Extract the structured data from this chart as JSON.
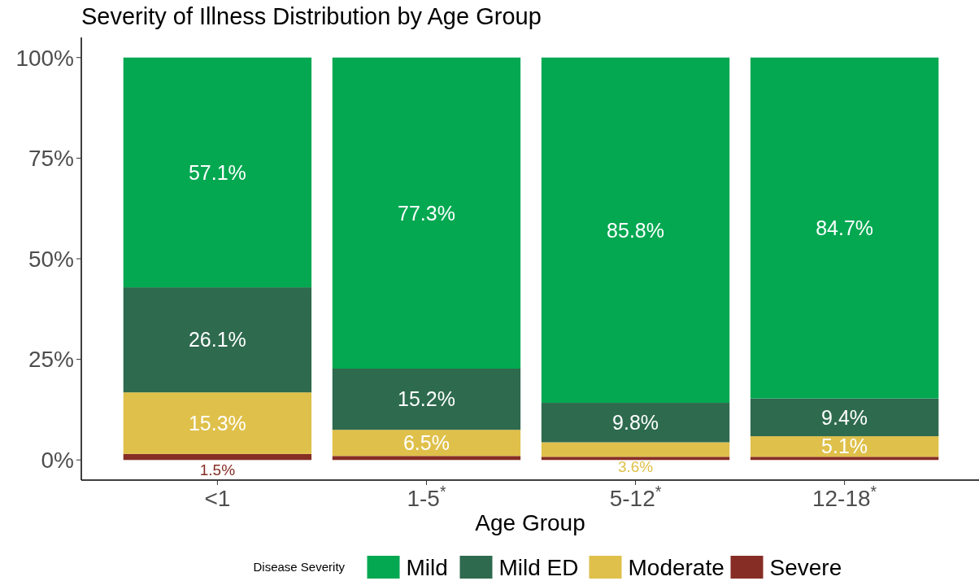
{
  "chart_data": {
    "type": "bar",
    "title": "Severity of Illness Distribution by Age Group",
    "xlabel": "Age Group",
    "legend_title": "Disease Severity",
    "categories": [
      "<1",
      "1-5$^{*}$",
      "5-12$^{*}$",
      "12-18$^{*}$"
    ],
    "stacked": true,
    "series": [
      {
        "name": "Severe",
        "color": "#862d25",
        "values": [
          1.5,
          1.0,
          0.8,
          0.8
        ],
        "value_labels": [
          "1.5%",
          null,
          null,
          null
        ]
      },
      {
        "name": "Moderate",
        "color": "#dfc04a",
        "values": [
          15.3,
          6.5,
          3.6,
          5.1
        ],
        "value_labels": [
          "15.3%",
          "6.5%",
          "3.6%",
          "5.1%"
        ]
      },
      {
        "name": "Mild ED",
        "color": "#2e6a4e",
        "values": [
          26.1,
          15.2,
          9.8,
          9.4
        ],
        "value_labels": [
          "26.1%",
          "15.2%",
          "9.8%",
          "9.4%"
        ]
      },
      {
        "name": "Mild",
        "color": "#03a851",
        "values": [
          57.1,
          77.3,
          85.8,
          84.7
        ],
        "value_labels": [
          "57.1%",
          "77.3%",
          "85.8%",
          "84.7%"
        ]
      }
    ],
    "ylim": [
      -5,
      105
    ],
    "yticks": [
      {
        "value": 0,
        "label": "0%"
      },
      {
        "value": 25,
        "label": "25%"
      },
      {
        "value": 50,
        "label": "50%"
      },
      {
        "value": 75,
        "label": "75%"
      },
      {
        "value": 100,
        "label": "100%"
      }
    ],
    "grid": false,
    "legend": "bottom"
  }
}
